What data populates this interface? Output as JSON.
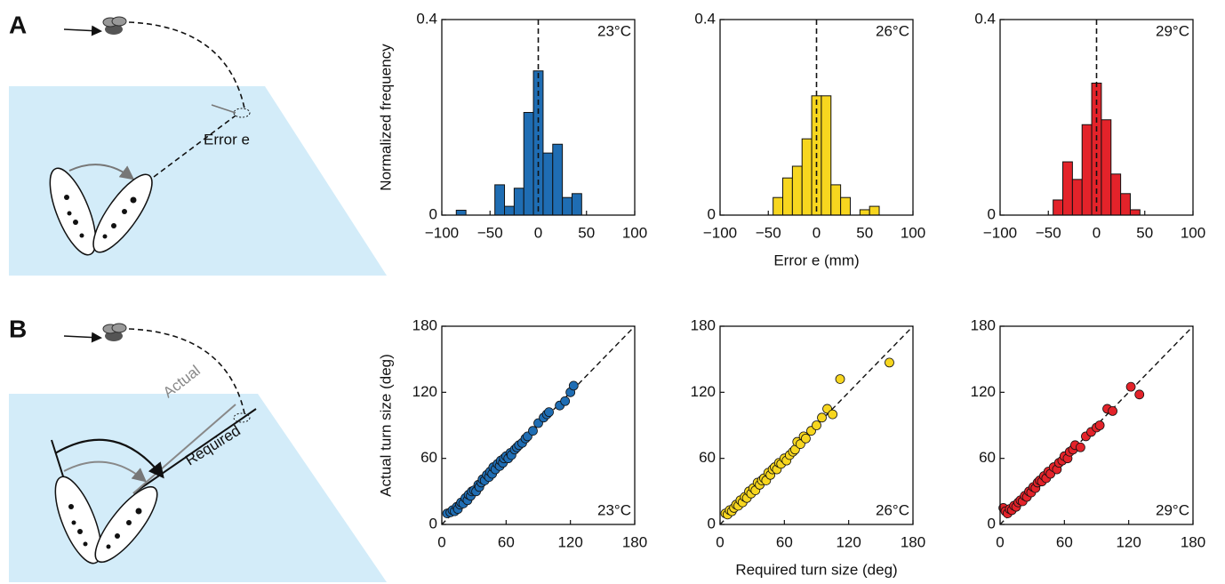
{
  "panel_labels": [
    "A",
    "B"
  ],
  "diagram_labels": {
    "error": "Error e",
    "actual": "Actual",
    "required": "Required"
  },
  "chart_data": [
    {
      "type": "histogram",
      "annotation": "23°C",
      "ylabel": "Normalized frequency",
      "color": "#1f6db3",
      "bins": [
        -85,
        -75,
        -65,
        -55,
        -45,
        -35,
        -25,
        -15,
        -5,
        5,
        15,
        25,
        35,
        45
      ],
      "values": [
        0.01,
        0,
        0,
        0,
        0.062,
        0.018,
        0.055,
        0.21,
        0.295,
        0.127,
        0.145,
        0.036,
        0.044
      ],
      "xlim": [
        -100,
        100
      ],
      "xticks": [
        {
          "value": -100,
          "label": "−100"
        },
        {
          "value": -50,
          "label": "−50"
        },
        0,
        50,
        100
      ],
      "ylim": [
        0,
        0.4
      ],
      "yticks": [
        0,
        0.4
      ],
      "reference_line": {
        "x": 0
      }
    },
    {
      "type": "histogram",
      "annotation": "26°C",
      "xlabel": "Error e (mm)",
      "color": "#f7d61f",
      "bins": [
        -45,
        -35,
        -25,
        -15,
        -5,
        5,
        15,
        25,
        35,
        45,
        55,
        65
      ],
      "values": [
        0.036,
        0.076,
        0.1,
        0.156,
        0.244,
        0.244,
        0.062,
        0.036,
        0,
        0.011,
        0.018
      ],
      "xlim": [
        -100,
        100
      ],
      "xticks": [
        {
          "value": -100,
          "label": "−100"
        },
        {
          "value": -50,
          "label": "−50"
        },
        0,
        50,
        100
      ],
      "ylim": [
        0,
        0.4
      ],
      "yticks": [
        0,
        0.4
      ],
      "reference_line": {
        "x": 0
      }
    },
    {
      "type": "histogram",
      "annotation": "29°C",
      "color": "#e3232a",
      "bins": [
        -45,
        -35,
        -25,
        -15,
        -5,
        5,
        15,
        25,
        35,
        45
      ],
      "values": [
        0.031,
        0.109,
        0.073,
        0.185,
        0.27,
        0.195,
        0.084,
        0.044,
        0.011
      ],
      "xlim": [
        -100,
        100
      ],
      "xticks": [
        {
          "value": -100,
          "label": "−100"
        },
        {
          "value": -50,
          "label": "−50"
        },
        0,
        50,
        100
      ],
      "ylim": [
        0,
        0.4
      ],
      "yticks": [
        0,
        0.4
      ],
      "reference_line": {
        "x": 0
      }
    },
    {
      "type": "scatter",
      "annotation": "23°C",
      "ylabel": "Actual turn size (deg)",
      "color": "#1f6db3",
      "x": [
        5,
        8,
        10,
        12,
        14,
        15,
        17,
        18,
        20,
        22,
        24,
        25,
        27,
        28,
        30,
        32,
        34,
        35,
        37,
        38,
        40,
        42,
        44,
        45,
        47,
        48,
        50,
        52,
        54,
        55,
        57,
        58,
        60,
        62,
        64,
        65,
        68,
        70,
        72,
        75,
        78,
        80,
        85,
        90,
        95,
        98,
        100,
        110,
        115,
        120,
        123
      ],
      "y": [
        10,
        11,
        13,
        12,
        16,
        14,
        18,
        20,
        19,
        24,
        22,
        27,
        26,
        30,
        31,
        30,
        36,
        34,
        38,
        41,
        40,
        45,
        43,
        48,
        46,
        52,
        50,
        55,
        53,
        58,
        56,
        60,
        62,
        60,
        65,
        63,
        68,
        70,
        72,
        74,
        78,
        80,
        85,
        92,
        97,
        100,
        102,
        108,
        112,
        120,
        126
      ],
      "xlim": [
        0,
        180
      ],
      "xticks": [
        0,
        60,
        120,
        180
      ],
      "ylim": [
        0,
        180
      ],
      "yticks": [
        0,
        60,
        120,
        180
      ],
      "identity_line": true
    },
    {
      "type": "scatter",
      "annotation": "26°C",
      "xlabel": "Required turn size (deg)",
      "color": "#f7d61f",
      "x": [
        5,
        7,
        9,
        11,
        13,
        15,
        17,
        19,
        21,
        23,
        25,
        27,
        29,
        31,
        33,
        35,
        37,
        39,
        41,
        43,
        45,
        47,
        49,
        51,
        53,
        55,
        57,
        60,
        62,
        65,
        68,
        70,
        72,
        75,
        78,
        80,
        85,
        90,
        95,
        100,
        105,
        112,
        158
      ],
      "y": [
        10,
        9,
        13,
        12,
        15,
        18,
        17,
        22,
        20,
        25,
        24,
        30,
        28,
        33,
        31,
        38,
        36,
        40,
        42,
        40,
        47,
        45,
        50,
        52,
        50,
        56,
        55,
        60,
        58,
        63,
        66,
        68,
        75,
        73,
        80,
        78,
        85,
        90,
        97,
        105,
        100,
        132,
        147
      ],
      "xlim": [
        0,
        180
      ],
      "xticks": [
        0,
        60,
        120,
        180
      ],
      "ylim": [
        0,
        180
      ],
      "yticks": [
        0,
        60,
        120,
        180
      ],
      "identity_line": true
    },
    {
      "type": "scatter",
      "annotation": "29°C",
      "color": "#e3232a",
      "x": [
        3,
        5,
        7,
        9,
        11,
        13,
        15,
        17,
        19,
        21,
        23,
        25,
        27,
        29,
        31,
        33,
        35,
        37,
        39,
        41,
        43,
        45,
        47,
        50,
        53,
        55,
        58,
        60,
        63,
        65,
        68,
        70,
        75,
        80,
        85,
        90,
        93,
        100,
        105,
        122,
        130
      ],
      "y": [
        15,
        12,
        10,
        14,
        13,
        17,
        16,
        20,
        22,
        21,
        26,
        25,
        30,
        29,
        34,
        33,
        38,
        40,
        39,
        44,
        42,
        48,
        46,
        52,
        50,
        56,
        58,
        62,
        60,
        66,
        68,
        72,
        70,
        80,
        84,
        88,
        90,
        105,
        103,
        125,
        118
      ],
      "xlim": [
        0,
        180
      ],
      "xticks": [
        0,
        60,
        120,
        180
      ],
      "ylim": [
        0,
        180
      ],
      "yticks": [
        0,
        60,
        120,
        180
      ],
      "identity_line": true
    }
  ]
}
